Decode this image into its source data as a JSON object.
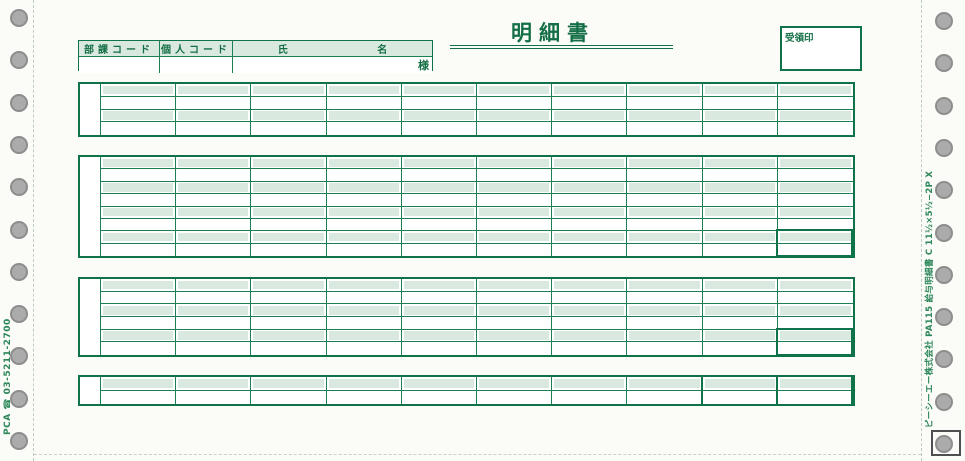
{
  "page": {
    "title": "明細書",
    "receipt_box": {
      "label": "受領印"
    },
    "recipient_header": {
      "dept_code_label": "部課コード",
      "personal_code_label": "個人コード",
      "name_label_left": "氏",
      "name_label_right": "名",
      "honorific": "様"
    },
    "vertical_notes": {
      "left": "PCA ☎ 03-5211-2700",
      "right": "ピーシーエー株式会社 PA115 給与明細書 C 11½×5½−2P X"
    },
    "sections": [
      {
        "name": "detail-block-1",
        "rows": 4,
        "cols": 10
      },
      {
        "name": "detail-block-2",
        "rows": 8,
        "cols": 10
      },
      {
        "name": "detail-block-3",
        "rows": 6,
        "cols": 10
      },
      {
        "name": "detail-block-4",
        "rows": 2,
        "cols": 10
      }
    ],
    "colors": {
      "grid_green": "#1a7f53",
      "shaded_row_fill": "#d9e9df",
      "text_green": "#156f46",
      "punch_hole_gray": "#ababab"
    }
  }
}
